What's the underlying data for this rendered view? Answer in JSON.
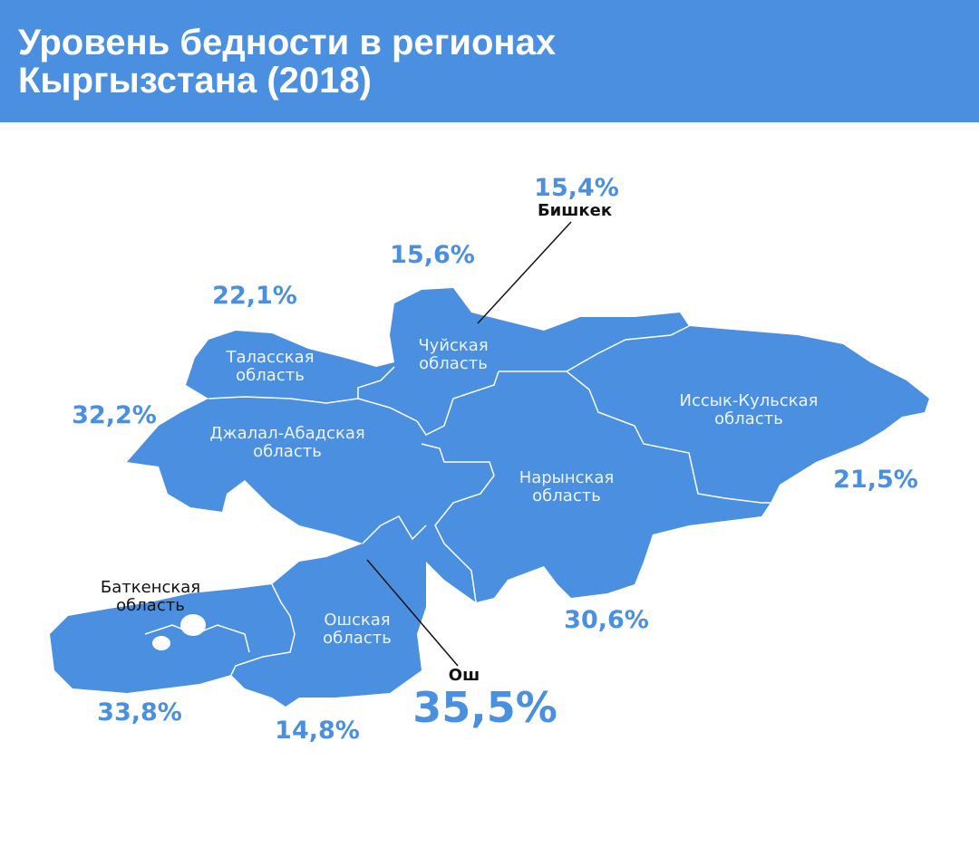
{
  "header": {
    "title": [
      "Уровень бедности в регионах",
      "Кыргызстана (2018)"
    ]
  },
  "regions": [
    {
      "name": [
        "Таласская",
        "область"
      ],
      "value": "22,1%"
    },
    {
      "name": [
        "Чуйская",
        "область"
      ],
      "value": "15,6%"
    },
    {
      "name": [
        "Бишкек"
      ],
      "value": "15,4%"
    },
    {
      "name": [
        "Джалал-Абадская",
        "область"
      ],
      "value": "32,2%"
    },
    {
      "name": [
        "Иссык-Кульская",
        "область"
      ],
      "value": "21,5%"
    },
    {
      "name": [
        "Нарынская",
        "область"
      ],
      "value": "30,6%"
    },
    {
      "name": [
        "Баткенская",
        "область"
      ],
      "value": "33,8%"
    },
    {
      "name": [
        "Ошская",
        "область"
      ],
      "value": "14,8%"
    },
    {
      "name": [
        "Ош"
      ],
      "value": "35,5%"
    }
  ]
}
